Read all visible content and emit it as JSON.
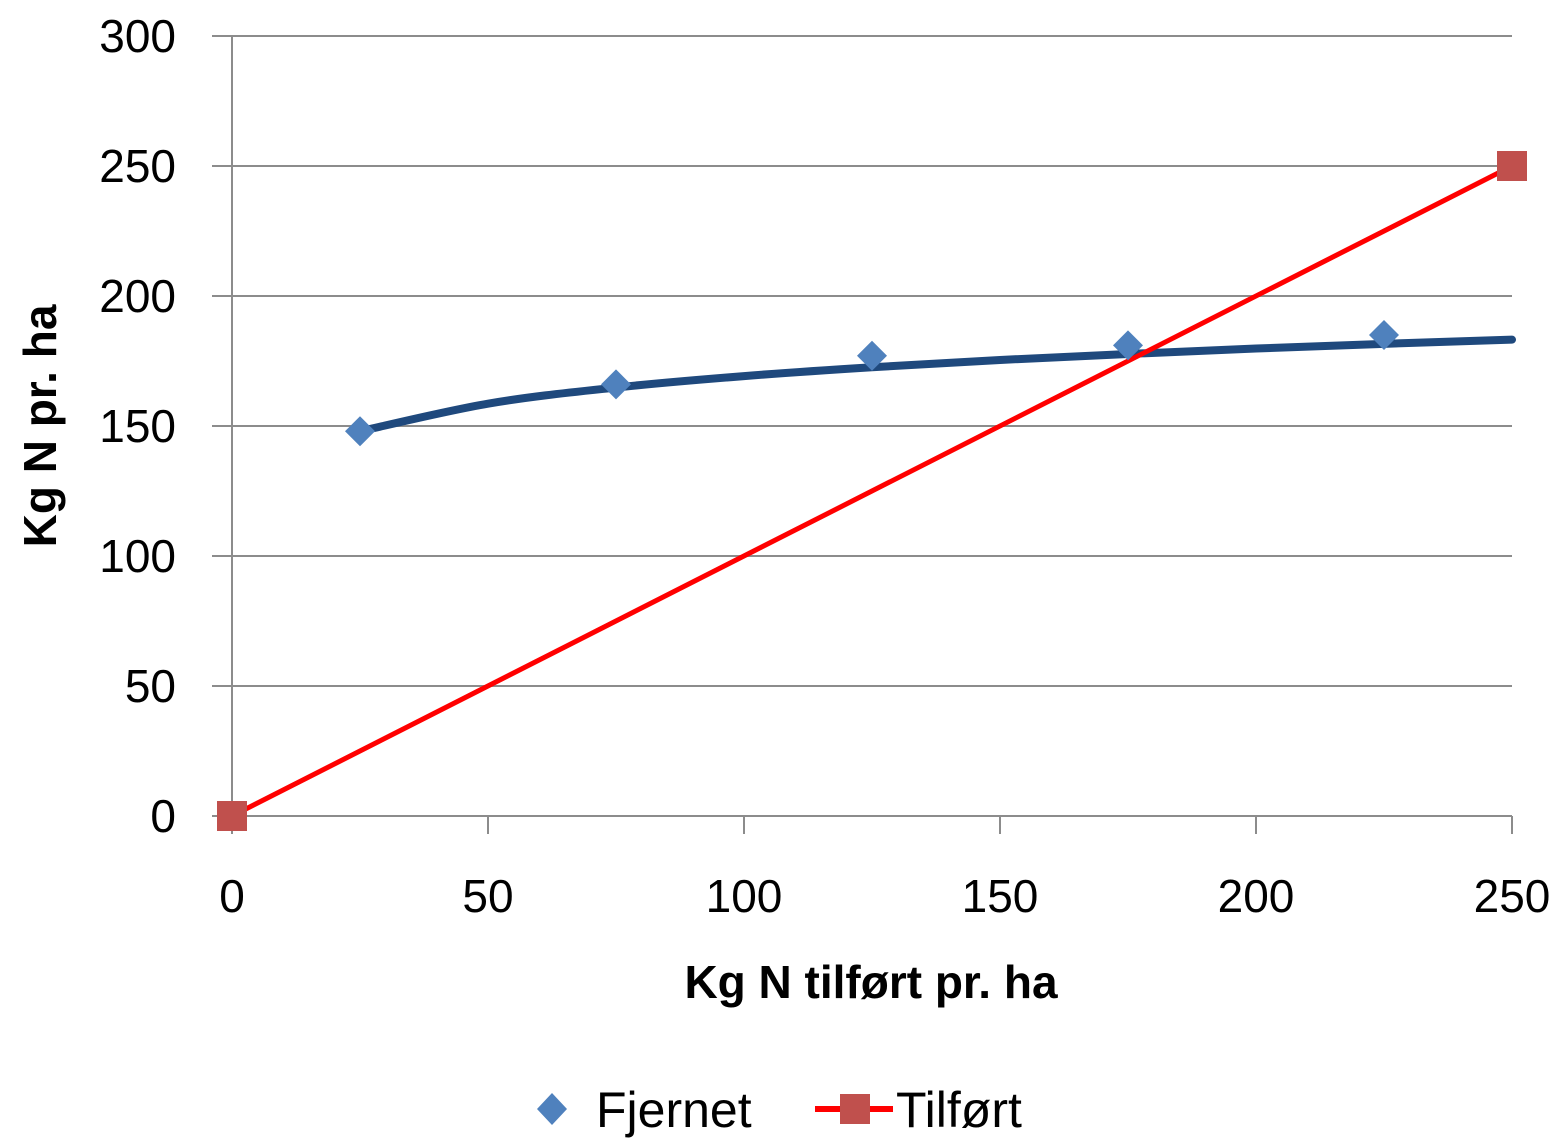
{
  "chart_data": {
    "type": "scatter",
    "title": "",
    "xlabel": "Kg N tilført pr. ha",
    "ylabel": "Kg N pr. ha",
    "xlim": [
      0,
      250
    ],
    "ylim": [
      0,
      300
    ],
    "x_ticks": [
      0,
      50,
      100,
      150,
      200,
      250
    ],
    "y_ticks": [
      0,
      50,
      100,
      150,
      200,
      250,
      300
    ],
    "x_tick_labels": [
      "0",
      "50",
      "100",
      "150",
      "200",
      "250"
    ],
    "y_tick_labels": [
      "0",
      "50",
      "100",
      "150",
      "200",
      "250",
      "300"
    ],
    "grid": "horizontal",
    "legend": "bottom",
    "series": [
      {
        "name": "Fjernet",
        "marker": "diamond",
        "color": "#4f81bd",
        "x": [
          25,
          75,
          125,
          175,
          225
        ],
        "y": [
          148,
          166,
          177,
          181,
          185
        ],
        "trendline": {
          "type": "logarithmic",
          "color": "#1f497d",
          "x": [
            25,
            50,
            75,
            100,
            125,
            150,
            175,
            200,
            225,
            250
          ],
          "y": [
            148,
            158.6,
            164.8,
            169.2,
            172.6,
            175.4,
            177.7,
            179.8,
            181.6,
            183.2
          ]
        }
      },
      {
        "name": "Tilført",
        "marker": "square",
        "color": "#c0504d",
        "line_color": "#ff0000",
        "x": [
          0,
          250
        ],
        "y": [
          0,
          250
        ]
      }
    ]
  }
}
